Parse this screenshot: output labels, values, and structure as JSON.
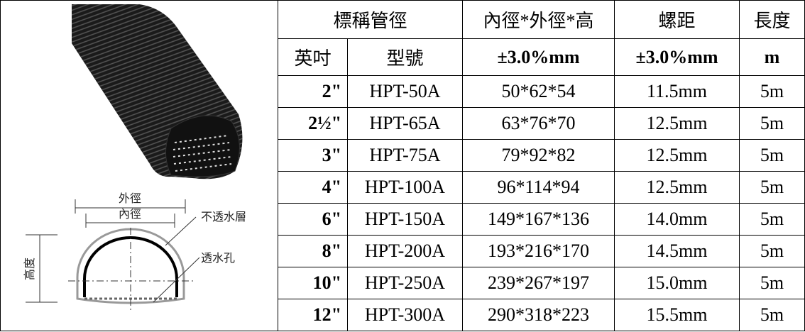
{
  "figure": {
    "labels": {
      "outer_diameter": "外徑",
      "inner_diameter": "內徑",
      "impermeable_layer": "不透水層",
      "height": "高度",
      "drain_holes": "透水孔"
    }
  },
  "table": {
    "header_row_1": [
      "標稱管徑",
      "內徑*外徑*高",
      "螺距",
      "長度"
    ],
    "header_row_2": [
      "英吋",
      "型號",
      "±3.0%mm",
      "±3.0%mm",
      "m"
    ],
    "rows": [
      [
        "2\"",
        "HPT-50A",
        "50*62*54",
        "11.5mm",
        "5m"
      ],
      [
        "2½\"",
        "HPT-65A",
        "63*76*70",
        "12.5mm",
        "5m"
      ],
      [
        "3\"",
        "HPT-75A",
        "79*92*82",
        "12.5mm",
        "5m"
      ],
      [
        "4\"",
        "HPT-100A",
        "96*114*94",
        "12.5mm",
        "5m"
      ],
      [
        "6\"",
        "HPT-150A",
        "149*167*136",
        "14.0mm",
        "5m"
      ],
      [
        "8\"",
        "HPT-200A",
        "193*216*170",
        "14.5mm",
        "5m"
      ],
      [
        "10\"",
        "HPT-250A",
        "239*267*197",
        "15.0mm",
        "5m"
      ],
      [
        "12\"",
        "HPT-300A",
        "290*318*223",
        "15.5mm",
        "5m"
      ]
    ]
  }
}
